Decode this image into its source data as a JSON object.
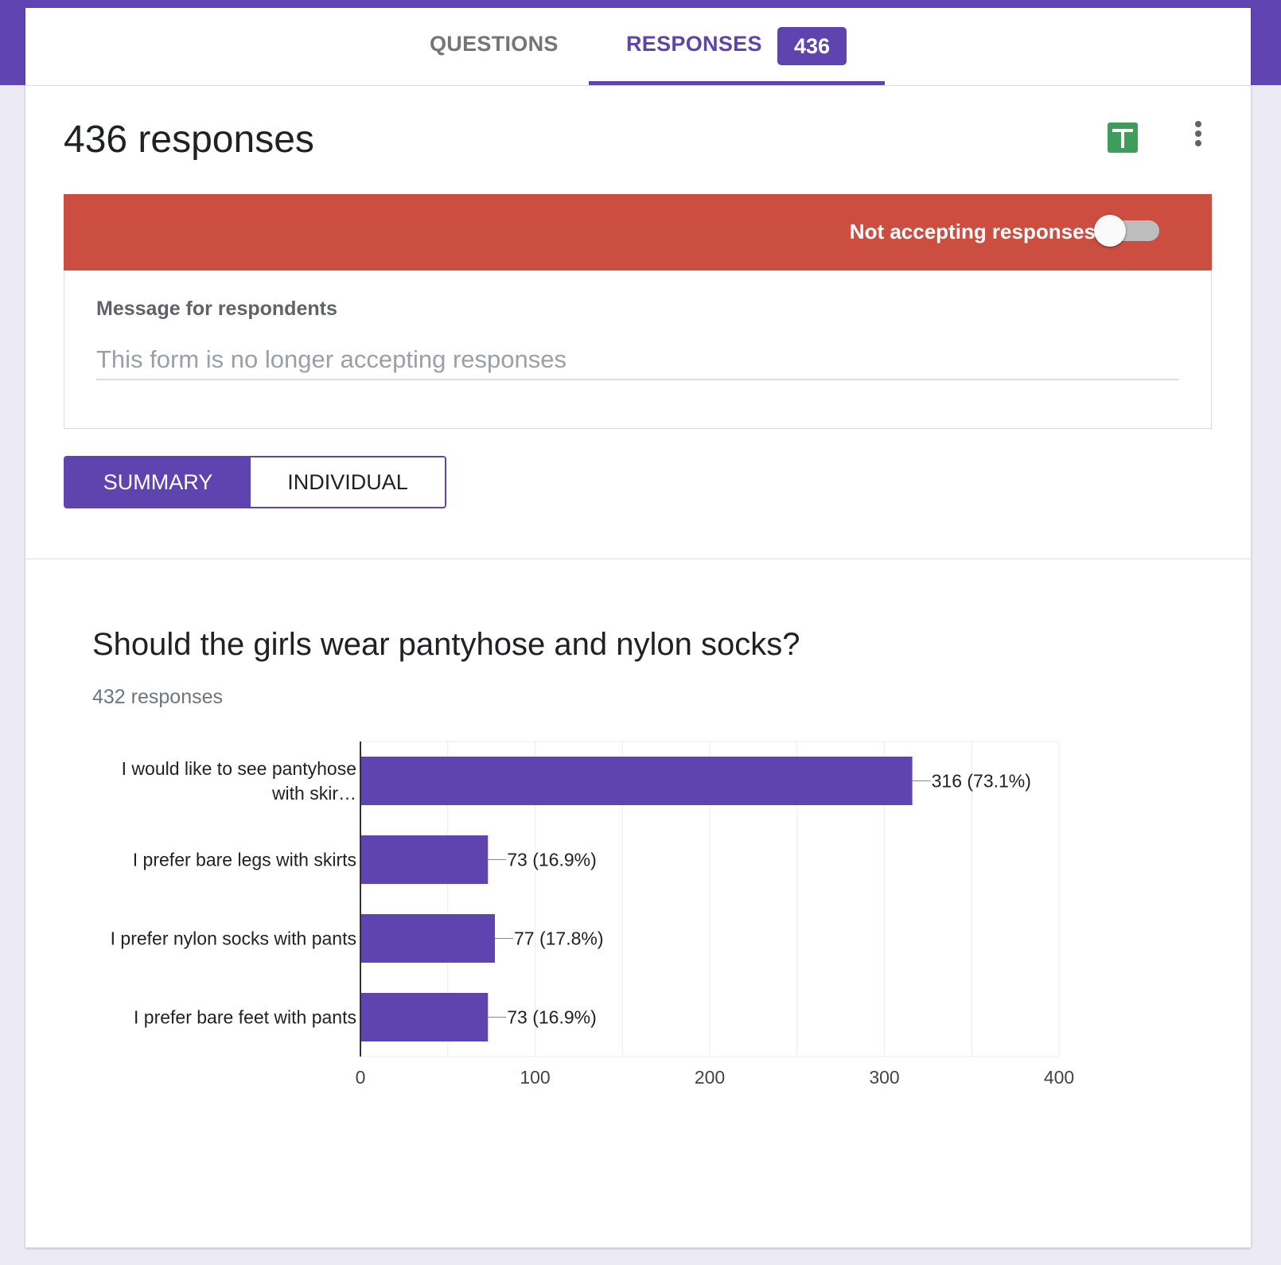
{
  "tabs": {
    "questions_label": "QUESTIONS",
    "responses_label": "RESPONSES",
    "responses_count": "436"
  },
  "header": {
    "title": "436 responses"
  },
  "icons": {
    "sheets": "google-sheets-icon",
    "more": "more-vert-icon"
  },
  "banner": {
    "text": "Not accepting responses",
    "accepting": false
  },
  "message": {
    "label": "Message for respondents",
    "placeholder": "This form is no longer accepting responses",
    "value": ""
  },
  "view_toggle": {
    "summary_label": "SUMMARY",
    "individual_label": "INDIVIDUAL",
    "selected": "summary"
  },
  "question": {
    "title": "Should the girls wear pantyhose and nylon socks?",
    "response_count": "432 responses"
  },
  "colors": {
    "accent": "#5f44b0",
    "banner": "#cb4e41",
    "sheets": "#3f9d5b"
  },
  "chart_data": {
    "type": "bar",
    "orientation": "horizontal",
    "categories": [
      "I would like to see pantyhose with skir…",
      "I prefer bare legs with skirts",
      "I prefer nylon socks with pants",
      "I prefer bare feet with pants"
    ],
    "category_lines": [
      [
        "I would like to see pantyhose",
        "with skir…"
      ],
      [
        "I prefer bare legs with skirts"
      ],
      [
        "I prefer nylon socks with pants"
      ],
      [
        "I prefer bare feet with pants"
      ]
    ],
    "values": [
      316,
      73,
      77,
      73
    ],
    "data_labels": [
      "316 (73.1%)",
      "73 (16.9%)",
      "77 (17.8%)",
      "73 (16.9%)"
    ],
    "xticks": [
      0,
      100,
      200,
      300,
      400
    ],
    "xlim": [
      0,
      400
    ],
    "grid": true,
    "bar_color": "#5f44b0"
  }
}
